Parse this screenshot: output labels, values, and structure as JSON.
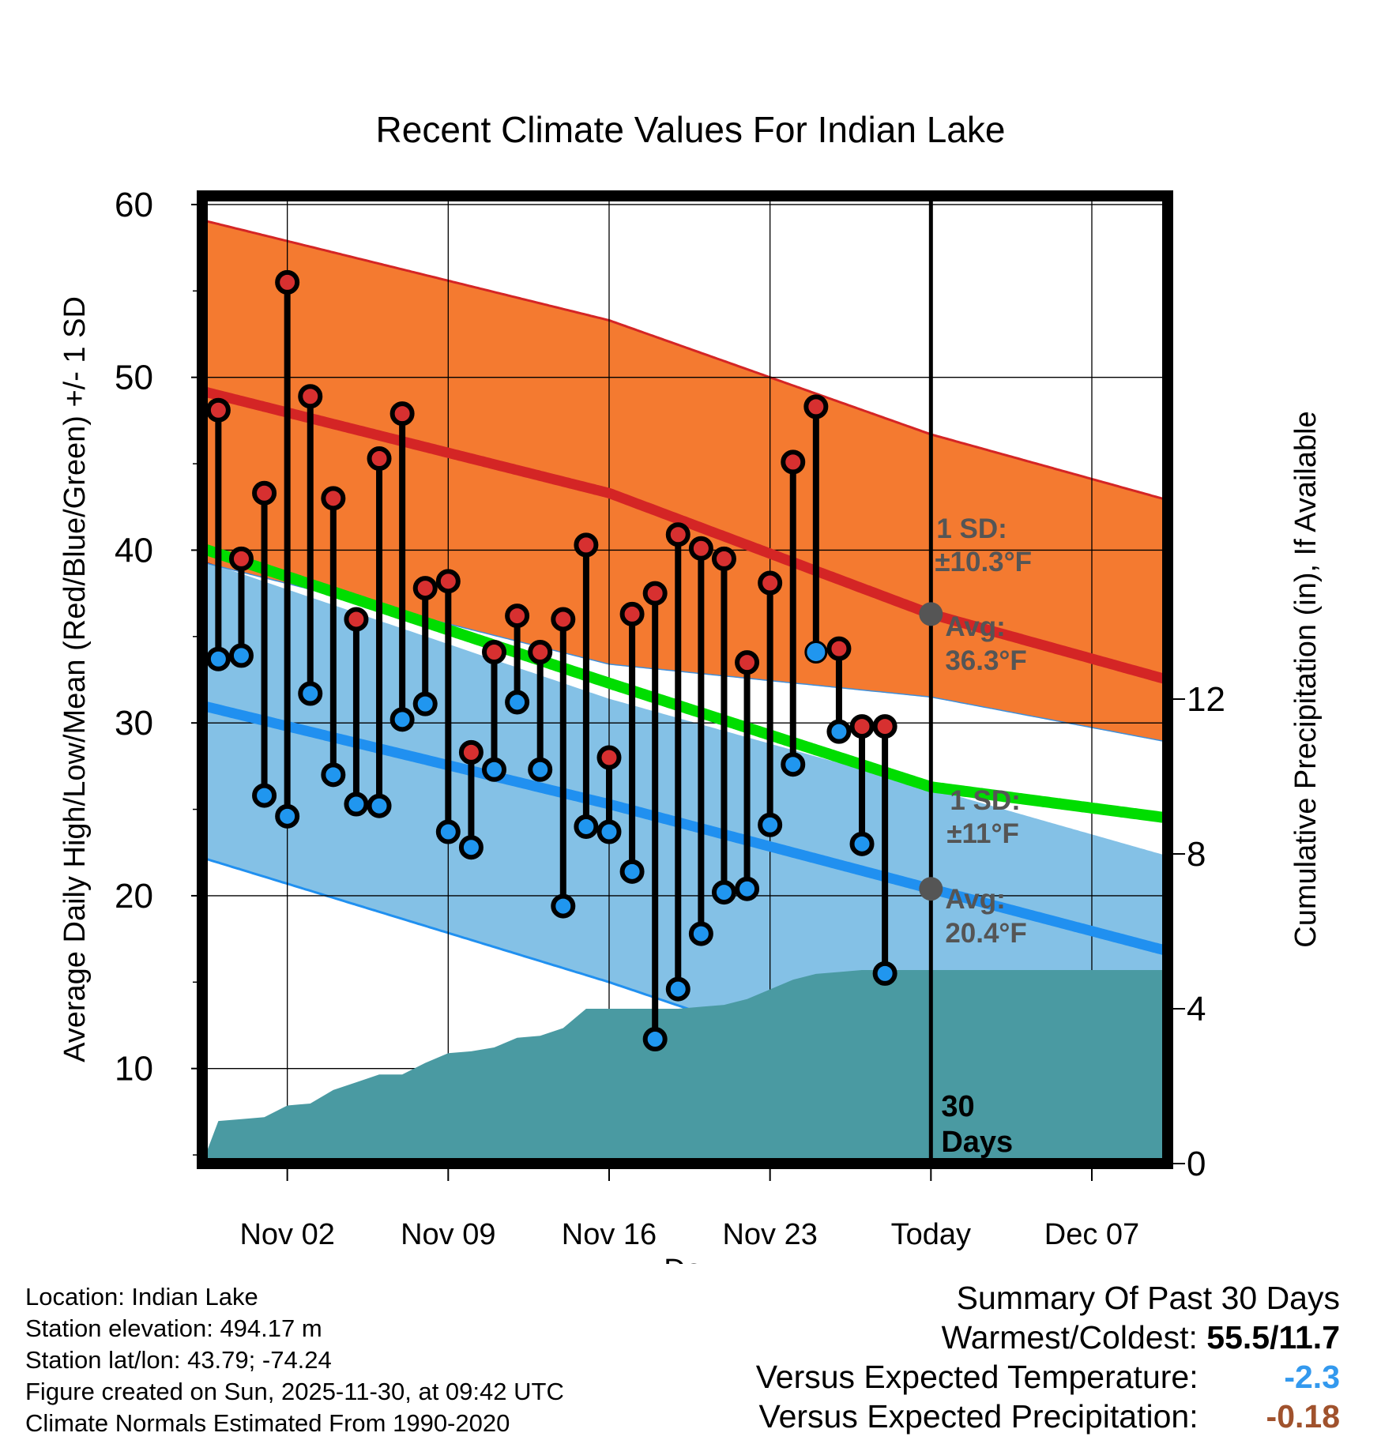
{
  "chart_data": {
    "type": "range-bar-with-normals",
    "title": "Recent Climate Values For Indian Lake",
    "xlabel": "Day",
    "ylabel_left": "Average Daily High/Low/Mean (Red/Blue/Green) +/- 1 SD",
    "ylabel_right": "Cumulative Precipitation (in), If Available",
    "x_range_days": [
      -31.7,
      10.3
    ],
    "ylim_left": [
      4.5,
      60.5
    ],
    "ylim_right": [
      0,
      25
    ],
    "yticks_left": [
      10,
      20,
      30,
      40,
      50,
      60
    ],
    "yticks_right": [
      0,
      4,
      8,
      12
    ],
    "xticks": [
      {
        "day": -28,
        "label": "Nov 02"
      },
      {
        "day": -21,
        "label": "Nov 09"
      },
      {
        "day": -14,
        "label": "Nov 16"
      },
      {
        "day": -7,
        "label": "Nov 23"
      },
      {
        "day": 0,
        "label": "Today"
      },
      {
        "day": 7,
        "label": "Dec 07"
      }
    ],
    "daily": [
      {
        "day": -31,
        "high": 48.1,
        "low": 33.7
      },
      {
        "day": -30,
        "high": 39.5,
        "low": 33.9
      },
      {
        "day": -29,
        "high": 43.3,
        "low": 25.8
      },
      {
        "day": -28,
        "high": 55.5,
        "low": 24.6
      },
      {
        "day": -27,
        "high": 48.9,
        "low": 31.7
      },
      {
        "day": -26,
        "high": 43.0,
        "low": 27.0
      },
      {
        "day": -25,
        "high": 36.0,
        "low": 25.3
      },
      {
        "day": -24,
        "high": 45.3,
        "low": 25.2
      },
      {
        "day": -23,
        "high": 47.9,
        "low": 30.2
      },
      {
        "day": -22,
        "high": 37.8,
        "low": 31.1
      },
      {
        "day": -21,
        "high": 38.2,
        "low": 23.7
      },
      {
        "day": -20,
        "high": 28.3,
        "low": 22.8
      },
      {
        "day": -19,
        "high": 34.1,
        "low": 27.3
      },
      {
        "day": -18,
        "high": 36.2,
        "low": 31.2
      },
      {
        "day": -17,
        "high": 34.1,
        "low": 27.3
      },
      {
        "day": -16,
        "high": 36.0,
        "low": 19.4
      },
      {
        "day": -15,
        "high": 40.3,
        "low": 24.0
      },
      {
        "day": -14,
        "high": 28.0,
        "low": 23.7
      },
      {
        "day": -13,
        "high": 36.3,
        "low": 21.4
      },
      {
        "day": -12,
        "high": 37.5,
        "low": 11.7
      },
      {
        "day": -11,
        "high": 40.9,
        "low": 14.6
      },
      {
        "day": -10,
        "high": 40.1,
        "low": 17.8
      },
      {
        "day": -9,
        "high": 39.5,
        "low": 20.2
      },
      {
        "day": -8,
        "high": 33.5,
        "low": 20.4
      },
      {
        "day": -7,
        "high": 38.1,
        "low": 24.1
      },
      {
        "day": -6,
        "high": 45.1,
        "low": 27.6
      },
      {
        "day": -5,
        "high": 48.3,
        "low": 34.1,
        "low_marker": "blue"
      },
      {
        "day": -4,
        "high": 34.3,
        "low": 29.5
      },
      {
        "day": -3,
        "high": 29.8,
        "low": 23.0
      },
      {
        "day": -2,
        "high": 29.8,
        "low": 15.5
      }
    ],
    "normals_high": {
      "mean": [
        [
          -31.7,
          49.2
        ],
        [
          -14,
          43.3
        ],
        [
          0,
          36.3
        ],
        [
          10.3,
          32.5
        ]
      ],
      "upper": [
        [
          -31.7,
          59.1
        ],
        [
          -14,
          53.3
        ],
        [
          0,
          46.7
        ],
        [
          10.3,
          42.9
        ]
      ],
      "lower": [
        [
          -31.7,
          39.3
        ],
        [
          -14,
          33.4
        ],
        [
          0,
          31.5
        ],
        [
          10.3,
          28.9
        ]
      ]
    },
    "normals_low": {
      "mean": [
        [
          -31.7,
          31.0
        ],
        [
          -14,
          25.3
        ],
        [
          0,
          20.4
        ],
        [
          10.3,
          16.8
        ]
      ],
      "upper": [
        [
          -31.7,
          39.4
        ],
        [
          -14,
          31.4
        ],
        [
          0,
          26.2
        ],
        [
          10.3,
          22.3
        ]
      ],
      "lower": [
        [
          -31.7,
          22.2
        ],
        [
          -14,
          15.0
        ],
        [
          0,
          8.7
        ],
        [
          10.3,
          5.2
        ]
      ]
    },
    "normals_mean": [
      [
        -31.7,
        40.1
      ],
      [
        -14,
        32.3
      ],
      [
        0,
        26.3
      ],
      [
        10.3,
        24.5
      ]
    ],
    "precip_cumulative": [
      [
        -31.7,
        0.0
      ],
      [
        -31,
        1.1
      ],
      [
        -30,
        1.15
      ],
      [
        -29,
        1.2
      ],
      [
        -28,
        1.5
      ],
      [
        -27,
        1.55
      ],
      [
        -26,
        1.9
      ],
      [
        -25,
        2.1
      ],
      [
        -24,
        2.3
      ],
      [
        -23,
        2.3
      ],
      [
        -22,
        2.6
      ],
      [
        -21,
        2.85
      ],
      [
        -20,
        2.9
      ],
      [
        -19,
        3.0
      ],
      [
        -18,
        3.25
      ],
      [
        -17,
        3.3
      ],
      [
        -16,
        3.5
      ],
      [
        -15,
        4.0
      ],
      [
        -14,
        4.0
      ],
      [
        -13,
        4.0
      ],
      [
        -12,
        4.0
      ],
      [
        -11,
        4.0
      ],
      [
        -10,
        4.05
      ],
      [
        -9,
        4.1
      ],
      [
        -8,
        4.25
      ],
      [
        -7,
        4.5
      ],
      [
        -6,
        4.75
      ],
      [
        -5,
        4.9
      ],
      [
        -4,
        4.95
      ],
      [
        -3,
        5.0
      ],
      [
        -2,
        5.0
      ],
      [
        -1,
        5.0
      ],
      [
        0,
        5.0
      ],
      [
        10.3,
        5.0
      ]
    ],
    "annotations": {
      "high_sd_label": "1 SD:",
      "high_sd_value": "±10.3°F",
      "high_avg_label": "Avg:",
      "high_avg_value": "36.3°F",
      "high_avg": 36.3,
      "low_sd_label": "1 SD:",
      "low_sd_value": "±11°F",
      "low_avg_label": "Avg:",
      "low_avg_value": "20.4°F",
      "low_avg": 20.4,
      "period_number": "30",
      "period_unit": "Days"
    }
  },
  "colors": {
    "high_band": "#f47a30",
    "high_line": "#d42525",
    "low_band": "#84c1e6",
    "low_line": "#2090f0",
    "mean_line": "#00dd00",
    "overlap": "#9a1212",
    "precip": "#4a9aa2",
    "high_marker": "#d73030",
    "low_marker": "#2096ef",
    "annotation": "#555555",
    "temp_departure": "#3399ee",
    "precip_departure": "#a0522d"
  },
  "info": {
    "location": "Location: Indian Lake",
    "elevation": "Station elevation: 494.17 m",
    "latlon": "Station lat/lon: 43.79; -74.24",
    "created": "Figure created on Sun, 2025-11-30, at 09:42 UTC",
    "normals": "Climate Normals Estimated From 1990-2020"
  },
  "summary": {
    "title": "Summary Of Past 30 Days",
    "warm_cold_label": "Warmest/Coldest:",
    "warm_cold_value": "55.5/11.7",
    "temp_label": "Versus Expected Temperature:",
    "temp_value": "-2.3",
    "precip_label": "Versus Expected Precipitation:",
    "precip_value": "-0.18"
  }
}
